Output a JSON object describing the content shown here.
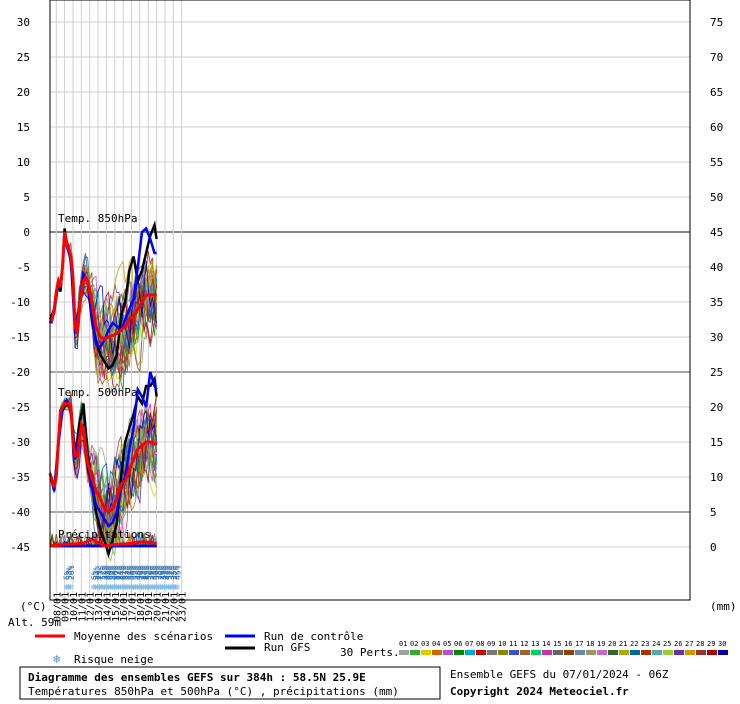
{
  "chart_data": {
    "type": "line",
    "title": "Diagramme des ensembles GEFS sur 384h : 58.5N 25.9E",
    "subtitle": "Températures 850hPa et 500hPa (°C) , précipitations (mm)",
    "left_unit": "(°C)",
    "right_unit": "(mm)",
    "altitude": "Alt. 59m",
    "copyright": "Copyright 2024 Meteociel.fr",
    "run_info": "Ensemble GEFS du 07/01/2024 - 06Z",
    "y_left_ticks": [
      "30",
      "25",
      "20",
      "15",
      "10",
      "5",
      "0",
      "-5",
      "-10",
      "-15",
      "-20",
      "-25",
      "-30",
      "-35",
      "-40",
      "-45"
    ],
    "y_right_ticks": [
      "75",
      "70",
      "65",
      "60",
      "55",
      "50",
      "45",
      "40",
      "35",
      "30",
      "25",
      "20",
      "15",
      "10",
      "5",
      "0"
    ],
    "dates": [
      "08/01",
      "09/01",
      "10/01",
      "11/01",
      "12/01",
      "13/01",
      "14/01",
      "15/01",
      "16/01",
      "17/01",
      "18/01",
      "19/01",
      "20/01",
      "21/01",
      "22/01",
      "23/01"
    ],
    "sections": {
      "t850": "Temp. 850hPa",
      "t500": "Temp. 500hPa",
      "precip": "Précipitations"
    },
    "snow_risk": {
      "group1": [
        "6%",
        "58%",
        "26%"
      ],
      "group2": [
        "6%",
        "23%",
        "2%",
        "77%",
        "52%",
        "35%",
        "35%",
        "94%",
        "90%",
        "84%",
        "90%",
        "87%",
        "74%",
        "84%",
        "81%",
        "61%",
        "42%",
        "48%",
        "45%",
        "39%",
        "52%",
        "48%",
        "29%",
        "29%",
        "32%",
        "39%",
        "52%",
        "39%",
        "48%",
        "45%",
        "39%",
        "35%",
        "29%",
        "39%",
        "32%",
        "42%",
        "32%",
        "32%",
        "35%",
        "42%",
        "45%"
      ]
    },
    "series": [
      {
        "name": "Moyenne des scénarios",
        "color": "#ff0000",
        "t850": [
          [
            0,
            -12.5
          ],
          [
            6,
            -12.5
          ],
          [
            12,
            -11
          ],
          [
            18,
            -8.5
          ],
          [
            24,
            -7
          ],
          [
            30,
            -7.8
          ],
          [
            36,
            -5
          ],
          [
            42,
            0
          ],
          [
            48,
            -1.5
          ],
          [
            54,
            -2.5
          ],
          [
            60,
            -3.5
          ],
          [
            66,
            -6.5
          ],
          [
            72,
            -13.5
          ],
          [
            78,
            -14.5
          ],
          [
            84,
            -11
          ],
          [
            90,
            -9
          ],
          [
            96,
            -7
          ],
          [
            102,
            -6.5
          ],
          [
            108,
            -7
          ],
          [
            114,
            -8.5
          ],
          [
            120,
            -10
          ],
          [
            132,
            -13.5
          ],
          [
            144,
            -15
          ],
          [
            156,
            -15.3
          ],
          [
            168,
            -15
          ],
          [
            180,
            -14.8
          ],
          [
            192,
            -14.5
          ],
          [
            204,
            -14
          ],
          [
            216,
            -13.5
          ],
          [
            228,
            -12.5
          ],
          [
            240,
            -12
          ],
          [
            252,
            -11
          ],
          [
            264,
            -10
          ],
          [
            276,
            -9
          ],
          [
            288,
            -9
          ],
          [
            300,
            -9
          ],
          [
            306,
            -9
          ]
        ],
        "t500": [
          [
            0,
            -34.5
          ],
          [
            12,
            -36.5
          ],
          [
            18,
            -35
          ],
          [
            24,
            -30
          ],
          [
            30,
            -25.5
          ],
          [
            36,
            -25
          ],
          [
            42,
            -24.5
          ],
          [
            48,
            -24.5
          ],
          [
            54,
            -24.5
          ],
          [
            60,
            -25
          ],
          [
            66,
            -30
          ],
          [
            72,
            -32
          ],
          [
            78,
            -32
          ],
          [
            84,
            -30
          ],
          [
            90,
            -27.5
          ],
          [
            96,
            -28
          ],
          [
            102,
            -30.5
          ],
          [
            108,
            -33
          ],
          [
            120,
            -35
          ],
          [
            132,
            -37
          ],
          [
            144,
            -38
          ],
          [
            156,
            -39.5
          ],
          [
            168,
            -40
          ],
          [
            180,
            -39.5
          ],
          [
            192,
            -38
          ],
          [
            204,
            -36
          ],
          [
            216,
            -35.5
          ],
          [
            228,
            -34
          ],
          [
            240,
            -32.5
          ],
          [
            252,
            -31
          ],
          [
            264,
            -30.5
          ],
          [
            276,
            -30
          ],
          [
            288,
            -30
          ],
          [
            300,
            -30.3
          ],
          [
            306,
            -30
          ]
        ],
        "precip": [
          [
            0,
            0
          ],
          [
            42,
            0.2
          ],
          [
            96,
            0.4
          ],
          [
            120,
            1
          ],
          [
            132,
            0.6
          ],
          [
            144,
            0.4
          ],
          [
            156,
            0
          ],
          [
            168,
            0
          ],
          [
            180,
            0.2
          ],
          [
            192,
            0.2
          ],
          [
            216,
            0.3
          ],
          [
            240,
            0.4
          ],
          [
            264,
            0.6
          ],
          [
            288,
            0.5
          ],
          [
            306,
            0.4
          ]
        ]
      },
      {
        "name": "Run de contrôle",
        "color": "#0000ff",
        "t850": [
          [
            0,
            -13
          ],
          [
            12,
            -11.5
          ],
          [
            24,
            -7
          ],
          [
            30,
            -8
          ],
          [
            36,
            -5
          ],
          [
            42,
            -0.5
          ],
          [
            48,
            -2
          ],
          [
            60,
            -4
          ],
          [
            72,
            -14.5
          ],
          [
            84,
            -11
          ],
          [
            96,
            -6
          ],
          [
            108,
            -7
          ],
          [
            120,
            -12
          ],
          [
            132,
            -16
          ],
          [
            144,
            -16.5
          ],
          [
            156,
            -15.5
          ],
          [
            168,
            -14
          ],
          [
            180,
            -13
          ],
          [
            192,
            -13.5
          ],
          [
            204,
            -14
          ],
          [
            216,
            -12.5
          ],
          [
            228,
            -11
          ],
          [
            240,
            -9.5
          ],
          [
            252,
            -5
          ],
          [
            264,
            0
          ],
          [
            276,
            0.5
          ],
          [
            288,
            -1
          ],
          [
            300,
            -3
          ],
          [
            306,
            -3
          ]
        ],
        "t500": [
          [
            0,
            -34.5
          ],
          [
            12,
            -37
          ],
          [
            24,
            -30.5
          ],
          [
            36,
            -25
          ],
          [
            48,
            -24
          ],
          [
            60,
            -25
          ],
          [
            72,
            -32.5
          ],
          [
            84,
            -29
          ],
          [
            96,
            -27.5
          ],
          [
            108,
            -33
          ],
          [
            120,
            -36.5
          ],
          [
            132,
            -39
          ],
          [
            144,
            -40
          ],
          [
            156,
            -41
          ],
          [
            168,
            -42
          ],
          [
            180,
            -41.5
          ],
          [
            192,
            -40
          ],
          [
            204,
            -36.5
          ],
          [
            216,
            -35
          ],
          [
            228,
            -31
          ],
          [
            240,
            -28
          ],
          [
            252,
            -22.5
          ],
          [
            264,
            -23.5
          ],
          [
            276,
            -25
          ],
          [
            288,
            -20
          ],
          [
            300,
            -22
          ],
          [
            306,
            -22.5
          ]
        ],
        "precip": [
          [
            0,
            0
          ],
          [
            144,
            0
          ],
          [
            204,
            0
          ],
          [
            306,
            0
          ]
        ]
      },
      {
        "name": "Run GFS",
        "color": "#000000",
        "t850": [
          [
            0,
            -12.5
          ],
          [
            12,
            -11
          ],
          [
            24,
            -7.5
          ],
          [
            30,
            -8.5
          ],
          [
            36,
            -5
          ],
          [
            42,
            0.5
          ],
          [
            48,
            -1.5
          ],
          [
            60,
            -3.5
          ],
          [
            72,
            -13.5
          ],
          [
            84,
            -11
          ],
          [
            96,
            -6
          ],
          [
            108,
            -7
          ],
          [
            120,
            -12.5
          ],
          [
            132,
            -15.5
          ],
          [
            144,
            -17.5
          ],
          [
            156,
            -18.5
          ],
          [
            168,
            -19.5
          ],
          [
            180,
            -19
          ],
          [
            192,
            -17.5
          ],
          [
            204,
            -12
          ],
          [
            216,
            -10
          ],
          [
            228,
            -5.5
          ],
          [
            240,
            -3.5
          ],
          [
            252,
            -7
          ],
          [
            264,
            -5.5
          ],
          [
            276,
            -3
          ],
          [
            288,
            -0.5
          ],
          [
            300,
            1
          ],
          [
            306,
            -1
          ]
        ],
        "t500": [
          [
            0,
            -34.5
          ],
          [
            12,
            -37
          ],
          [
            24,
            -30
          ],
          [
            36,
            -25.5
          ],
          [
            48,
            -24.5
          ],
          [
            60,
            -25
          ],
          [
            72,
            -32
          ],
          [
            84,
            -27.5
          ],
          [
            96,
            -24.5
          ],
          [
            108,
            -31.5
          ],
          [
            120,
            -36
          ],
          [
            132,
            -40
          ],
          [
            144,
            -42.5
          ],
          [
            156,
            -44
          ],
          [
            168,
            -46
          ],
          [
            180,
            -44
          ],
          [
            192,
            -41.5
          ],
          [
            204,
            -35
          ],
          [
            216,
            -30
          ],
          [
            228,
            -28
          ],
          [
            240,
            -26
          ],
          [
            252,
            -23.5
          ],
          [
            264,
            -24.5
          ],
          [
            276,
            -22
          ],
          [
            288,
            -22
          ],
          [
            300,
            -21
          ],
          [
            306,
            -23.5
          ]
        ],
        "precip": [
          [
            0,
            0
          ],
          [
            144,
            0
          ],
          [
            204,
            0
          ],
          [
            306,
            0
          ]
        ]
      }
    ],
    "legend": {
      "mean": "Moyenne des scénarios",
      "control": "Run de contrôle",
      "gfs": "Run GFS",
      "snow": "Risque neige",
      "perts_label": "30 Perts.",
      "perts": [
        "01",
        "02",
        "03",
        "04",
        "05",
        "06",
        "07",
        "08",
        "09",
        "10",
        "11",
        "12",
        "13",
        "14",
        "15",
        "16",
        "17",
        "18",
        "19",
        "20",
        "21",
        "22",
        "23",
        "24",
        "25",
        "26",
        "27",
        "28",
        "29",
        "30"
      ],
      "pert_colors": [
        "#a0a0a0",
        "#33aa33",
        "#ddcc00",
        "#cc6600",
        "#aa55cc",
        "#008800",
        "#00aacc",
        "#cc0000",
        "#777777",
        "#888800",
        "#3355cc",
        "#996633",
        "#00cc66",
        "#cc33aa",
        "#666666",
        "#884400",
        "#6688aa",
        "#999966",
        "#cc66cc",
        "#336633",
        "#aaaa00",
        "#0066aa",
        "#aa3300",
        "#55aaaa",
        "#99cc33",
        "#6633aa",
        "#cc9900",
        "#993333",
        "#aa0000",
        "#0000aa"
      ]
    }
  }
}
